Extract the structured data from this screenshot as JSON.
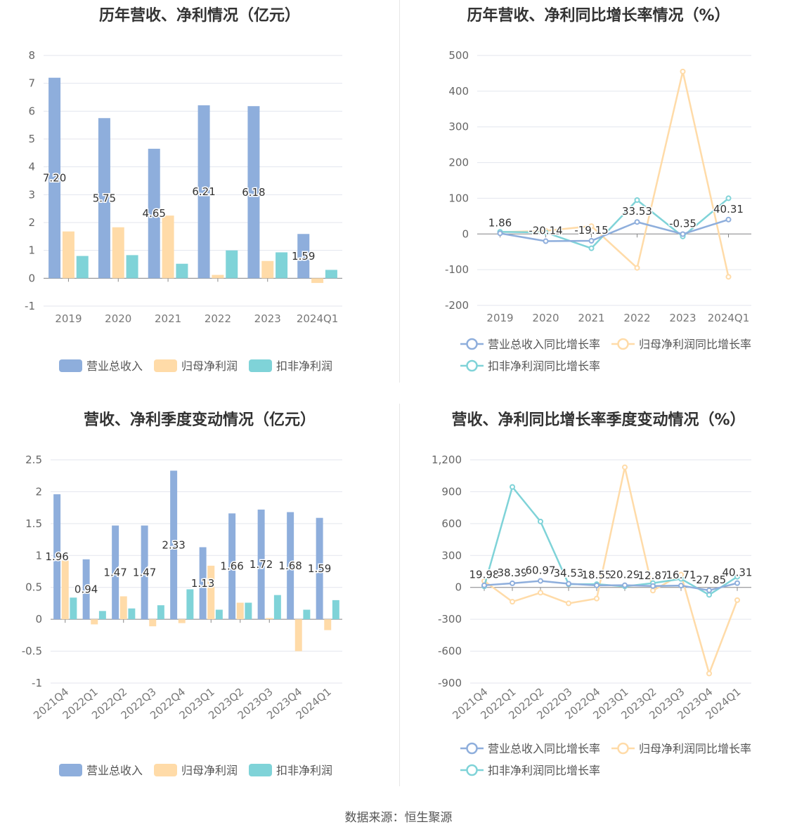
{
  "source": "数据来源：恒生聚源",
  "colors": {
    "revenue": "#8eaedc",
    "net": "#ffdba8",
    "deduct": "#7fd3d8",
    "grid": "#e3e6ee",
    "axis": "#888888",
    "text": "#666666"
  },
  "chart_data": [
    {
      "id": "annual-bar",
      "type": "bar",
      "title": "历年营收、净利情况（亿元）",
      "categories": [
        "2019",
        "2020",
        "2021",
        "2022",
        "2023",
        "2024Q1"
      ],
      "ylim": [
        -1,
        8
      ],
      "yticks": [
        -1,
        0,
        1,
        2,
        3,
        4,
        5,
        6,
        7,
        8
      ],
      "ytick_labels": [
        "-1",
        "0",
        "1",
        "2",
        "3",
        "4",
        "5",
        "6",
        "7",
        "8"
      ],
      "series": [
        {
          "name": "营业总收入",
          "color": "#8eaedc",
          "values": [
            7.2,
            5.75,
            4.65,
            6.21,
            6.18,
            1.59
          ],
          "labels": [
            "7.20",
            "5.75",
            "4.65",
            "6.21",
            "6.18",
            "1.59"
          ]
        },
        {
          "name": "归母净利润",
          "color": "#ffdba8",
          "values": [
            1.68,
            1.83,
            2.25,
            0.12,
            0.62,
            -0.17
          ]
        },
        {
          "name": "扣非净利润",
          "color": "#7fd3d8",
          "values": [
            0.8,
            0.83,
            0.52,
            1.0,
            0.93,
            0.3
          ]
        }
      ]
    },
    {
      "id": "annual-line",
      "type": "line",
      "title": "历年营收、净利同比增长率情况（%）",
      "categories": [
        "2019",
        "2020",
        "2021",
        "2022",
        "2023",
        "2024Q1"
      ],
      "ylim": [
        -200,
        500
      ],
      "yticks": [
        -200,
        -100,
        0,
        100,
        200,
        300,
        400,
        500
      ],
      "ytick_labels": [
        "-200",
        "-100",
        "0",
        "100",
        "200",
        "300",
        "400",
        "500"
      ],
      "series": [
        {
          "name": "营业总收入同比增长率",
          "color": "#8eaedc",
          "values": [
            1.86,
            -20.14,
            -19.15,
            33.53,
            -0.35,
            40.31
          ],
          "labels": [
            "1.86",
            "-20.14",
            "-19.15",
            "33.53",
            "-0.35",
            "40.31"
          ]
        },
        {
          "name": "归母净利润同比增长率",
          "color": "#ffdba8",
          "values": [
            5,
            9,
            22,
            -95,
            455,
            -120
          ]
        },
        {
          "name": "扣非净利润同比增长率",
          "color": "#7fd3d8",
          "values": [
            6,
            4,
            -40,
            95,
            -7,
            100
          ]
        }
      ]
    },
    {
      "id": "quarter-bar",
      "type": "bar",
      "title": "营收、净利季度变动情况（亿元）",
      "categories": [
        "2021Q4",
        "2022Q1",
        "2022Q2",
        "2022Q3",
        "2022Q4",
        "2023Q1",
        "2023Q2",
        "2023Q3",
        "2023Q4",
        "2024Q1"
      ],
      "ylim": [
        -1,
        2.5
      ],
      "yticks": [
        -1,
        -0.5,
        0,
        0.5,
        1,
        1.5,
        2,
        2.5
      ],
      "ytick_labels": [
        "-1",
        "-0.5",
        "0",
        "0.5",
        "1",
        "1.5",
        "2",
        "2.5"
      ],
      "series": [
        {
          "name": "营业总收入",
          "color": "#8eaedc",
          "values": [
            1.96,
            0.94,
            1.47,
            1.47,
            2.33,
            1.13,
            1.66,
            1.72,
            1.68,
            1.59
          ],
          "labels": [
            "1.96",
            "0.94",
            "1.47",
            "1.47",
            "2.33",
            "1.13",
            "1.66",
            "1.72",
            "1.68",
            "1.59"
          ]
        },
        {
          "name": "归母净利润",
          "color": "#ffdba8",
          "values": [
            0.92,
            -0.08,
            0.36,
            -0.11,
            -0.06,
            0.84,
            0.26,
            0.02,
            -0.5,
            -0.17
          ]
        },
        {
          "name": "扣非净利润",
          "color": "#7fd3d8",
          "values": [
            0.34,
            0.13,
            0.17,
            0.22,
            0.47,
            0.15,
            0.26,
            0.38,
            0.15,
            0.3
          ]
        }
      ]
    },
    {
      "id": "quarter-line",
      "type": "line",
      "title": "营收、净利同比增长率季度变动情况（%）",
      "categories": [
        "2021Q4",
        "2022Q1",
        "2022Q2",
        "2022Q3",
        "2022Q4",
        "2023Q1",
        "2023Q2",
        "2023Q3",
        "2023Q4",
        "2024Q1"
      ],
      "ylim": [
        -900,
        1200
      ],
      "yticks": [
        -900,
        -600,
        -300,
        0,
        300,
        600,
        900,
        1200
      ],
      "ytick_labels": [
        "-900",
        "-600",
        "-300",
        "0",
        "300",
        "600",
        "900",
        "1,200"
      ],
      "series": [
        {
          "name": "营业总收入同比增长率",
          "color": "#8eaedc",
          "values": [
            19.98,
            38.39,
            60.97,
            34.53,
            18.55,
            20.29,
            12.87,
            16.71,
            -27.85,
            40.31
          ],
          "labels": [
            "19.98",
            "38.39",
            "60.97",
            "34.53",
            "18.55",
            "20.29",
            "12.87",
            "16.71",
            "-27.85",
            "40.31"
          ]
        },
        {
          "name": "归母净利润同比增长率",
          "color": "#ffdba8",
          "values": [
            60,
            -135,
            -50,
            -150,
            -105,
            1130,
            -30,
            120,
            -810,
            -120
          ]
        },
        {
          "name": "扣非净利润同比增长率",
          "color": "#7fd3d8",
          "values": [
            10,
            945,
            620,
            30,
            30,
            10,
            40,
            80,
            -70,
            100
          ]
        }
      ]
    }
  ]
}
